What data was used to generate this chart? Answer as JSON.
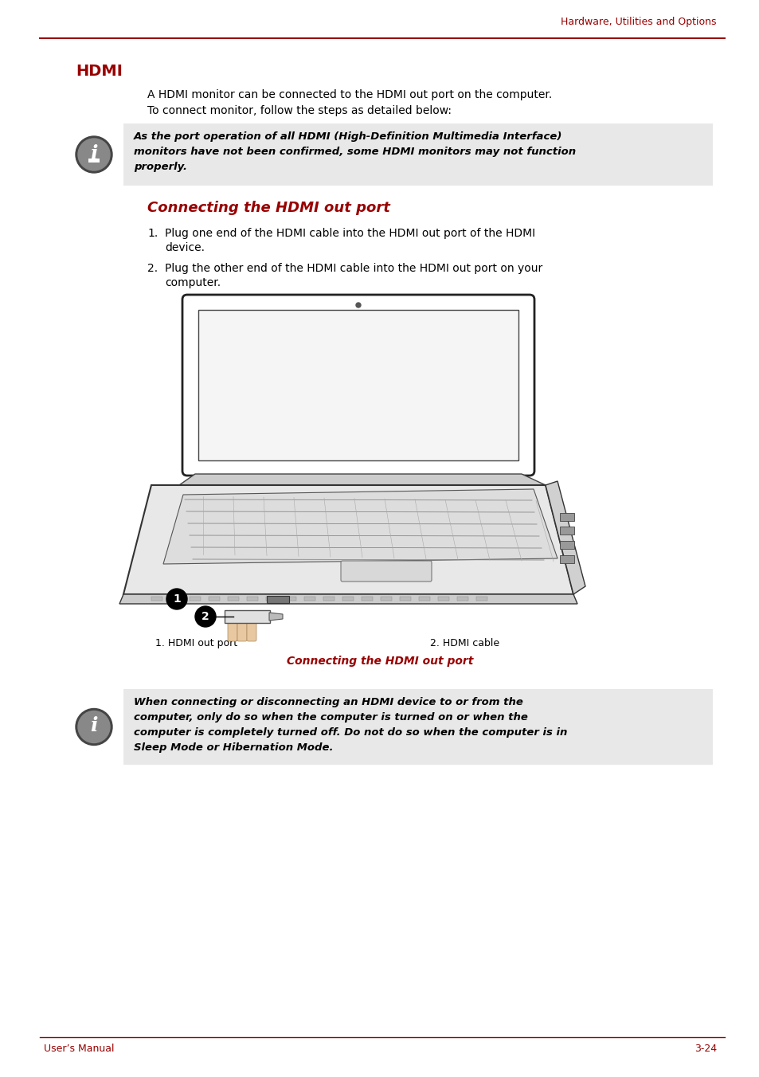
{
  "page_header": "Hardware, Utilities and Options",
  "section_title": "HDMI",
  "intro_text_line1": "A HDMI monitor can be connected to the HDMI out port on the computer.",
  "intro_text_line2": "To connect monitor, follow the steps as detailed below:",
  "note1_text": "As the port operation of all HDMI (High-Definition Multimedia Interface)\nmonitors have not been confirmed, some HDMI monitors may not function\nproperly.",
  "subsection_title": "Connecting the HDMI out port",
  "step1_num": "1.",
  "step1_line1": "Plug one end of the HDMI cable into the HDMI out port of the HDMI",
  "step1_line2": "device.",
  "step2_num": "2.",
  "step2_line1": "Plug the other end of the HDMI cable into the HDMI out port on your",
  "step2_line2": "computer.",
  "caption_left": "1. HDMI out port",
  "caption_right": "2. HDMI cable",
  "caption_center": "Connecting the HDMI out port",
  "note2_text": "When connecting or disconnecting an HDMI device to or from the\ncomputer, only do so when the computer is turned on or when the\ncomputer is completely turned off. Do not do so when the computer is in\nSleep Mode or Hibernation Mode.",
  "footer_left": "User’s Manual",
  "footer_right": "3-24",
  "red_color": "#8B0000",
  "dark_red": "#990000",
  "gray_bg": "#E8E8E8",
  "black": "#000000",
  "white": "#FFFFFF",
  "line_color": "#8B0000"
}
